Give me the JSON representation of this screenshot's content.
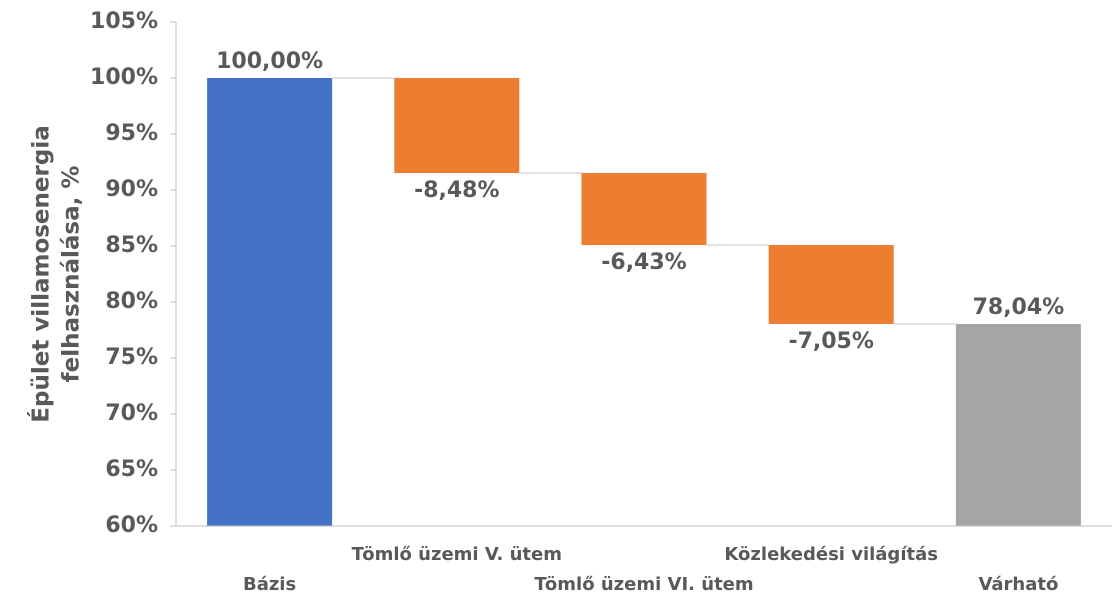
{
  "chart_data": {
    "type": "waterfall",
    "y_label_lines": [
      "Épület villamosenergia",
      "felhasználása, %"
    ],
    "categories": [
      "Bázis",
      "Tömlő üzemi V. ütem",
      "Tömlő üzemi VI. ütem",
      "Közlekedési világítás",
      "Várható"
    ],
    "measure": [
      "absolute",
      "relative",
      "relative",
      "relative",
      "absolute"
    ],
    "values": [
      100,
      -8.48,
      -6.43,
      -7.05,
      78.04
    ],
    "value_labels": [
      "100,00%",
      "-8,48%",
      "-6,43%",
      "-7,05%",
      "78,04%"
    ],
    "colors": [
      "#4472c4",
      "#ed7d31",
      "#ed7d31",
      "#ed7d31",
      "#a5a5a5"
    ],
    "ylim": [
      60,
      105
    ],
    "yticks": [
      {
        "value": 60,
        "label": "60%"
      },
      {
        "value": 65,
        "label": "65%"
      },
      {
        "value": 70,
        "label": "70%"
      },
      {
        "value": 75,
        "label": "75%"
      },
      {
        "value": 80,
        "label": "80%"
      },
      {
        "value": 85,
        "label": "85%"
      },
      {
        "value": 90,
        "label": "90%"
      },
      {
        "value": 95,
        "label": "95%"
      },
      {
        "value": 100,
        "label": "100%"
      },
      {
        "value": 105,
        "label": "105%"
      }
    ]
  }
}
